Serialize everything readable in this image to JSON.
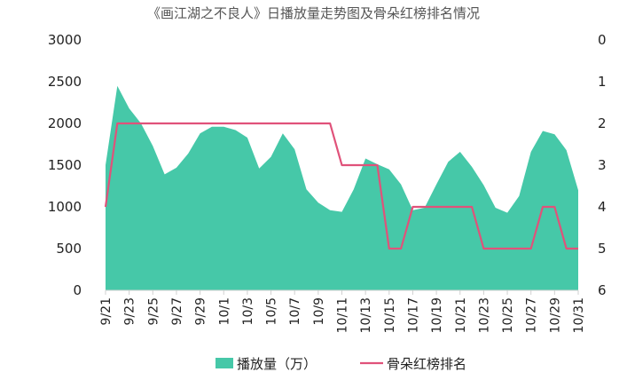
{
  "chart_data": {
    "type": "area+line",
    "title": "《画江湖之不良人》日播放量走势图及骨朵红榜排名情况",
    "x": [
      "9/21",
      "9/22",
      "9/23",
      "9/24",
      "9/25",
      "9/26",
      "9/27",
      "9/28",
      "9/29",
      "9/30",
      "10/1",
      "10/2",
      "10/3",
      "10/4",
      "10/5",
      "10/6",
      "10/7",
      "10/8",
      "10/9",
      "10/10",
      "10/11",
      "10/12",
      "10/13",
      "10/14",
      "10/15",
      "10/16",
      "10/17",
      "10/18",
      "10/19",
      "10/20",
      "10/21",
      "10/22",
      "10/23",
      "10/24",
      "10/25",
      "10/26",
      "10/27",
      "10/28",
      "10/29",
      "10/30",
      "10/31"
    ],
    "x_tick_labels": [
      "9/21",
      "9/23",
      "9/25",
      "9/27",
      "9/29",
      "10/1",
      "10/3",
      "10/5",
      "10/7",
      "10/9",
      "10/11",
      "10/13",
      "10/15",
      "10/17",
      "10/19",
      "10/21",
      "10/23",
      "10/25",
      "10/27",
      "10/29",
      "10/31"
    ],
    "left_axis": {
      "ylim": [
        0,
        3000
      ],
      "ticks": [
        "0",
        "500",
        "1000",
        "1500",
        "2000",
        "2500",
        "3000"
      ]
    },
    "right_axis": {
      "ylim": [
        0,
        6
      ],
      "inverted": true,
      "ticks": [
        "0",
        "1",
        "2",
        "3",
        "4",
        "5",
        "6"
      ]
    },
    "series": [
      {
        "name": "播放量（万）",
        "type": "area",
        "axis": "left",
        "color": "#46c8a8",
        "values": [
          1500,
          2450,
          2180,
          2000,
          1730,
          1390,
          1470,
          1640,
          1880,
          1960,
          1960,
          1920,
          1830,
          1460,
          1600,
          1880,
          1690,
          1210,
          1050,
          960,
          940,
          1210,
          1580,
          1510,
          1450,
          1270,
          960,
          990,
          1270,
          1540,
          1660,
          1480,
          1260,
          990,
          930,
          1130,
          1660,
          1910,
          1870,
          1680,
          1200
        ]
      },
      {
        "name": "骨朵红榜排名",
        "type": "line",
        "axis": "right",
        "color": "#e0527a",
        "values": [
          4,
          2,
          2,
          2,
          2,
          2,
          2,
          2,
          2,
          2,
          2,
          2,
          2,
          2,
          2,
          2,
          2,
          2,
          2,
          2,
          3,
          3,
          3,
          3,
          5,
          5,
          4,
          4,
          4,
          4,
          4,
          4,
          5,
          5,
          5,
          5,
          5,
          4,
          4,
          5,
          5
        ]
      }
    ],
    "grid": false,
    "legend_position": "bottom"
  }
}
